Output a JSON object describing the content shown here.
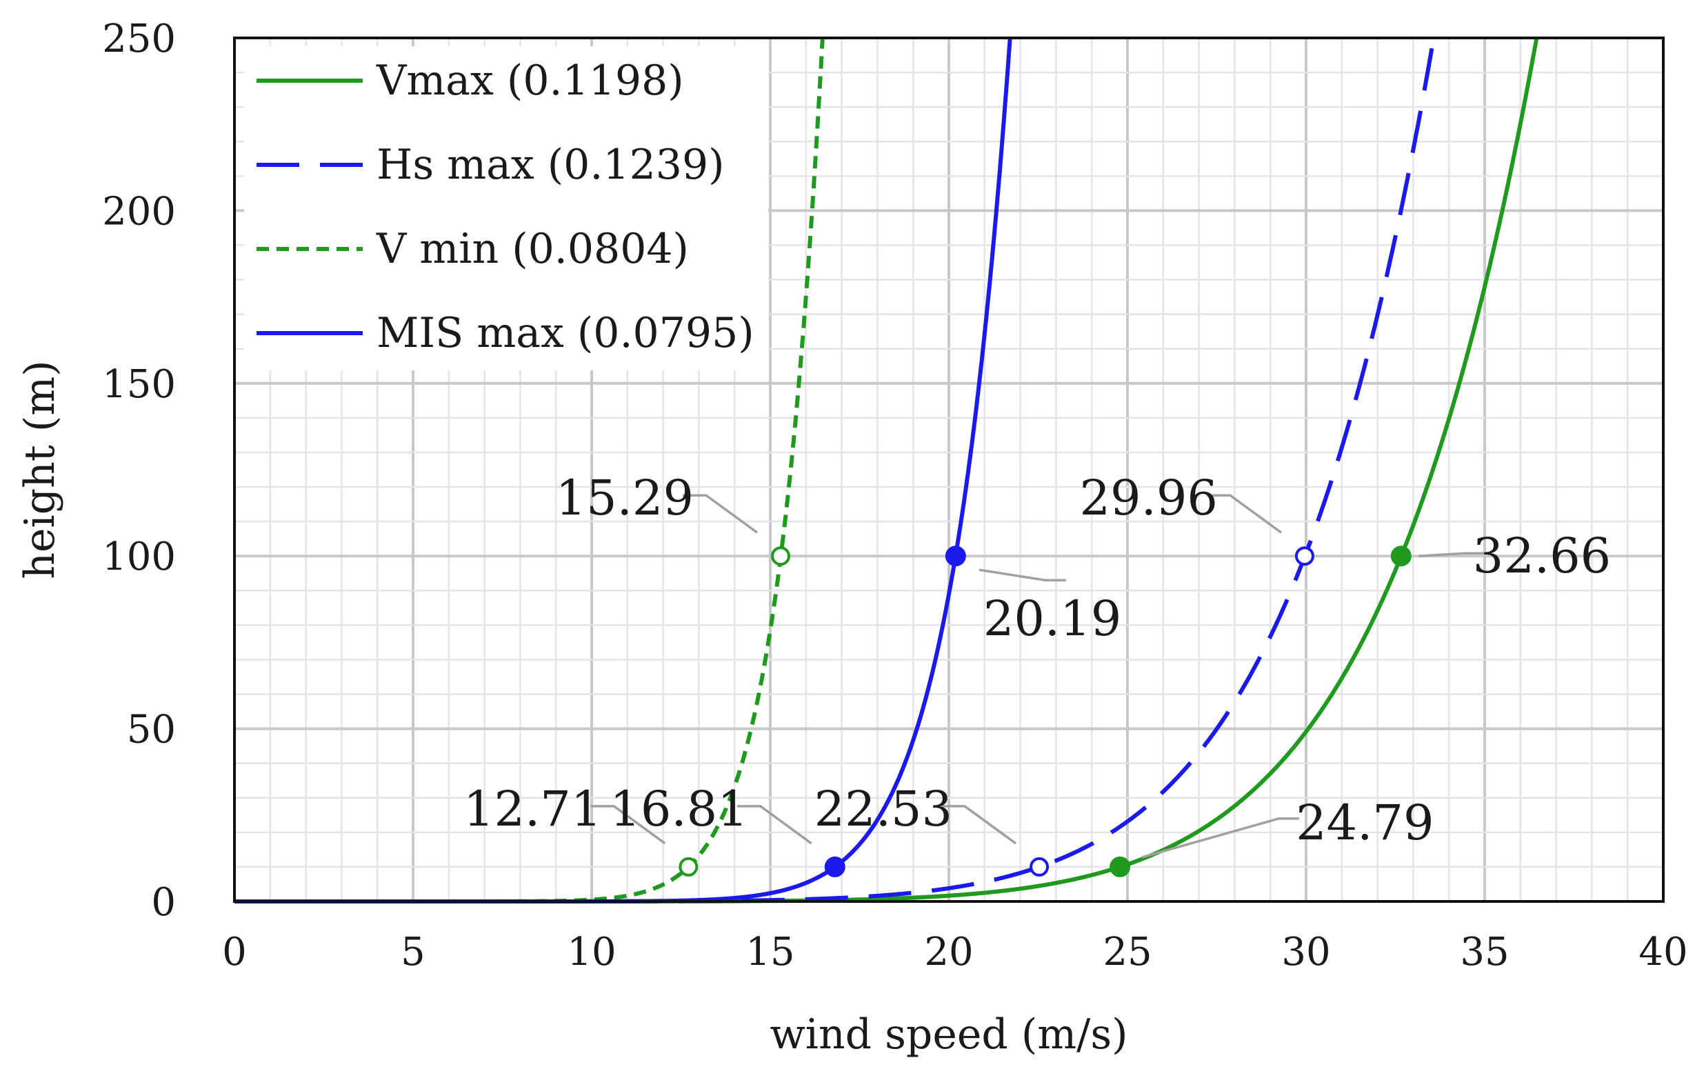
{
  "chart_data": {
    "type": "line",
    "xlabel": "wind speed (m/s)",
    "ylabel": "height (m)",
    "xlim": [
      0,
      40
    ],
    "ylim": [
      0,
      250
    ],
    "x_ticks": [
      0,
      5,
      10,
      15,
      20,
      25,
      30,
      35,
      40
    ],
    "y_ticks": [
      0,
      50,
      100,
      150,
      200,
      250
    ],
    "x_tick_labels": [
      "0",
      "5",
      "10",
      "15",
      "20",
      "25",
      "30",
      "35",
      "40"
    ],
    "y_tick_labels": [
      "0",
      "50",
      "100",
      "150",
      "200",
      "250"
    ],
    "grid": true,
    "legend_position": "top-left",
    "series": [
      {
        "name": "Vmax (0.1198)",
        "legend_label": "Vmax (0.1198)",
        "alpha": 0.1198,
        "v_ref": 24.79,
        "z_ref": 10,
        "color": "#1f9a1f",
        "style": "solid"
      },
      {
        "name": "Hs max (0.1239)",
        "legend_label": "Hs max (0.1239)",
        "alpha": 0.1239,
        "v_ref": 22.53,
        "z_ref": 10,
        "color": "#1a1aee",
        "style": "dashed"
      },
      {
        "name": "V min (0.0804)",
        "legend_label": "V min (0.0804)",
        "alpha": 0.0804,
        "v_ref": 12.71,
        "z_ref": 10,
        "color": "#1f9a1f",
        "style": "dotted"
      },
      {
        "name": "MIS max (0.0795)",
        "legend_label": "MIS max (0.0795)",
        "alpha": 0.0795,
        "v_ref": 16.81,
        "z_ref": 10,
        "color": "#1a1aee",
        "style": "solid"
      }
    ],
    "annotations": [
      {
        "label": "15.29",
        "x": 15.29,
        "y": 100,
        "marker": "open",
        "color": "#1f9a1f",
        "side": "upper-left"
      },
      {
        "label": "12.71",
        "x": 12.71,
        "y": 10,
        "marker": "open",
        "color": "#1f9a1f",
        "side": "upper-left"
      },
      {
        "label": "20.19",
        "x": 20.19,
        "y": 100,
        "marker": "filled",
        "color": "#1a1aee",
        "side": "lower-right"
      },
      {
        "label": "16.81",
        "x": 16.81,
        "y": 10,
        "marker": "filled",
        "color": "#1a1aee",
        "side": "upper-left"
      },
      {
        "label": "29.96",
        "x": 29.96,
        "y": 100,
        "marker": "open",
        "color": "#1a1aee",
        "side": "upper-left"
      },
      {
        "label": "22.53",
        "x": 22.53,
        "y": 10,
        "marker": "open",
        "color": "#1a1aee",
        "side": "upper-left"
      },
      {
        "label": "32.66",
        "x": 32.66,
        "y": 100,
        "marker": "filled",
        "color": "#1f9a1f",
        "side": "right"
      },
      {
        "label": "24.79",
        "x": 24.79,
        "y": 10,
        "marker": "filled",
        "color": "#1f9a1f",
        "side": "upper-right"
      }
    ]
  }
}
